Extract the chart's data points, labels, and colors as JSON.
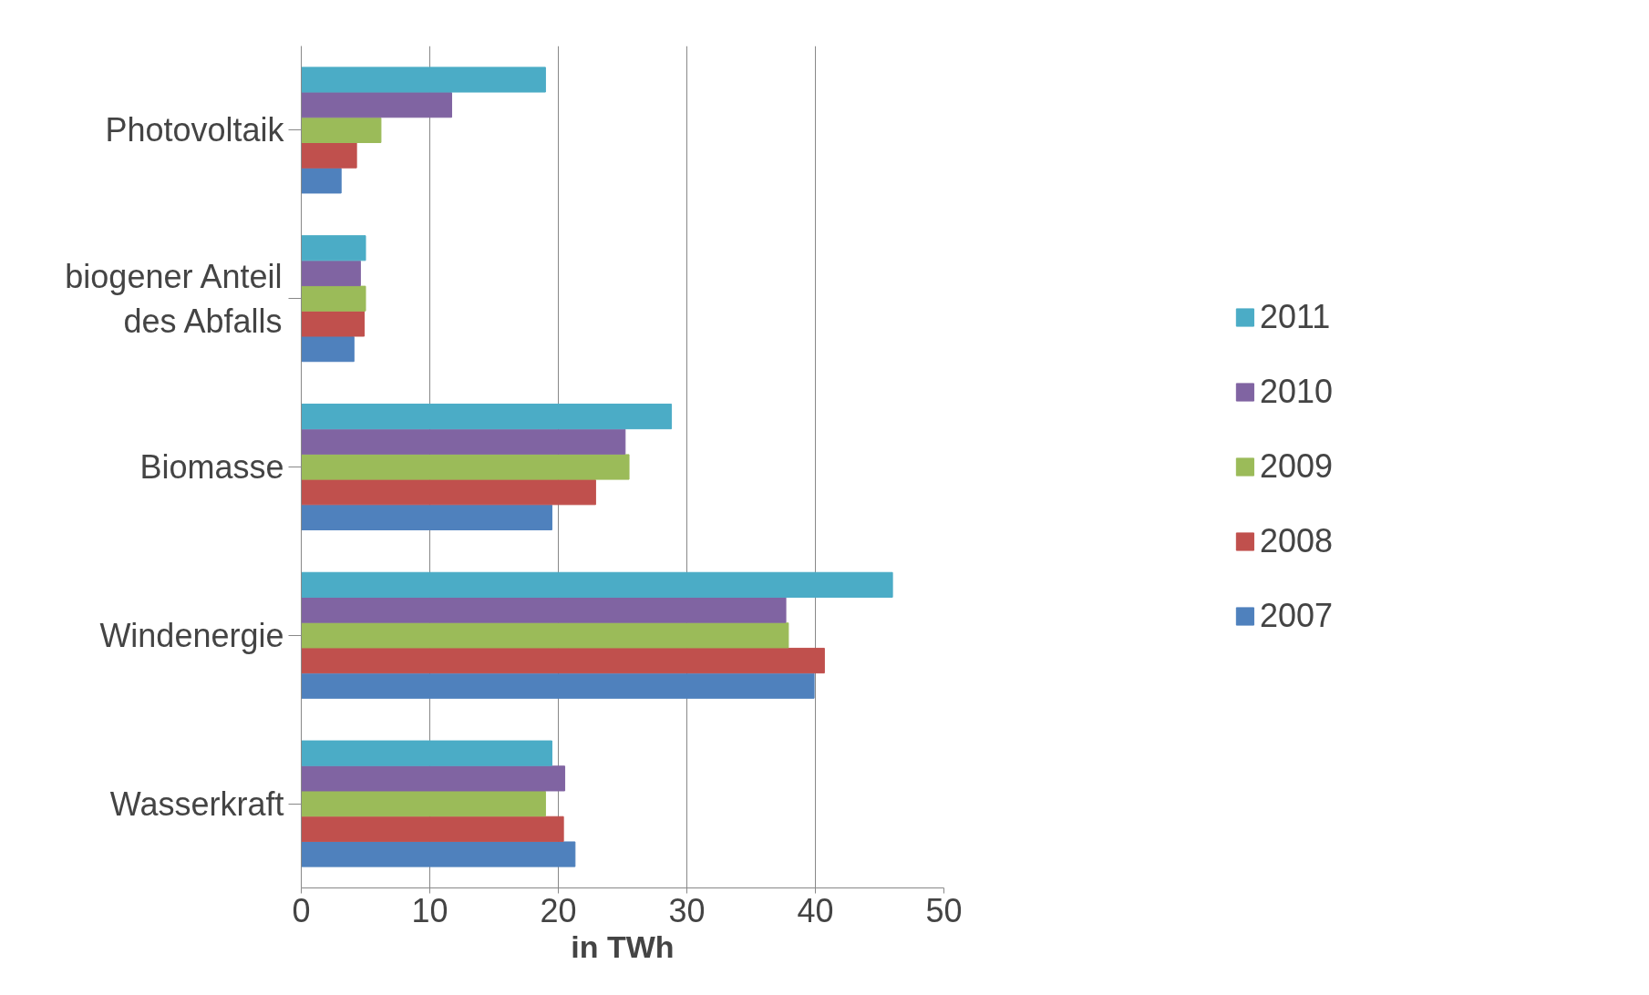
{
  "chart_data": {
    "type": "bar",
    "orientation": "horizontal",
    "xlabel": "in TWh",
    "categories": [
      "Photovoltaik",
      "biogener Anteil des Abfalls",
      "Biomasse",
      "Windenergie",
      "Wasserkraft"
    ],
    "series": [
      {
        "name": "2007",
        "color": "#4f81bd",
        "values": [
          3.1,
          4.1,
          19.5,
          39.9,
          21.3
        ]
      },
      {
        "name": "2008",
        "color": "#c0504d",
        "values": [
          4.3,
          4.9,
          22.9,
          40.7,
          20.4
        ]
      },
      {
        "name": "2009",
        "color": "#9bbb59",
        "values": [
          6.2,
          5.0,
          25.5,
          37.9,
          19.0
        ]
      },
      {
        "name": "2010",
        "color": "#8064a2",
        "values": [
          11.7,
          4.6,
          25.2,
          37.7,
          20.5
        ]
      },
      {
        "name": "2011",
        "color": "#4bacc6",
        "values": [
          19.0,
          5.0,
          28.8,
          46.0,
          19.5
        ]
      }
    ],
    "xlim": [
      0,
      50
    ],
    "xticks": [
      0,
      10,
      20,
      30,
      40,
      50
    ],
    "grid": "x",
    "legend": "right"
  }
}
